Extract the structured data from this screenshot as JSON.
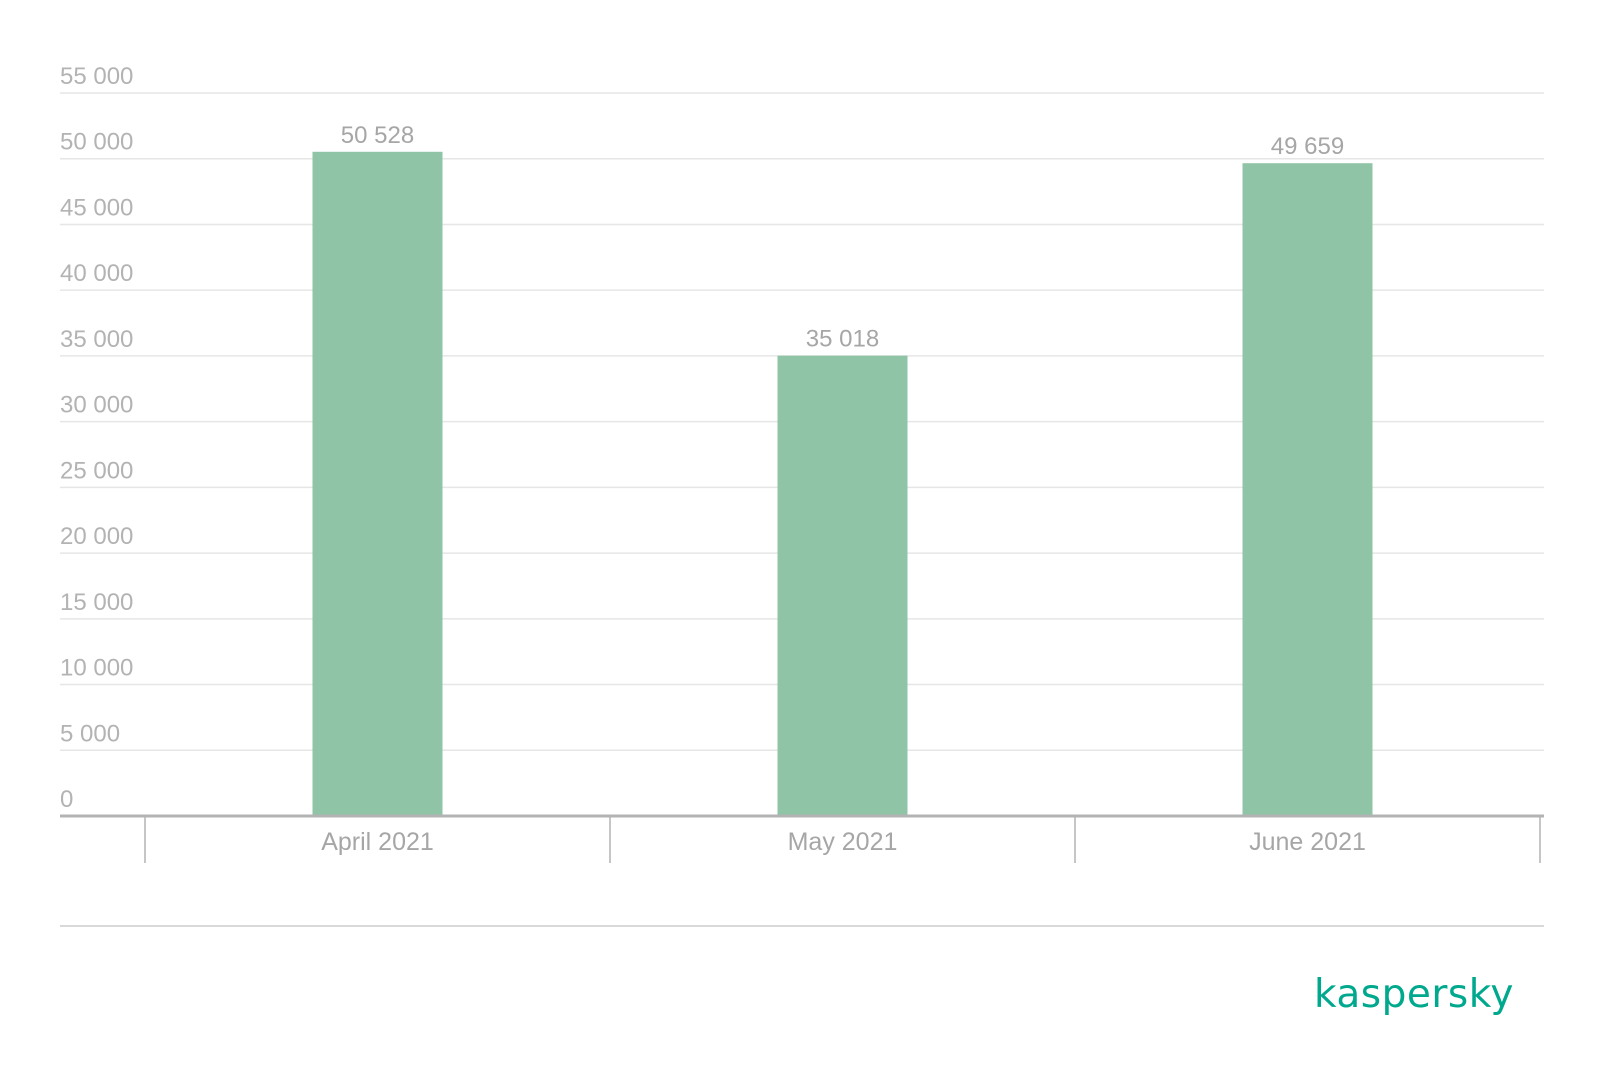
{
  "chart_data": {
    "type": "bar",
    "categories": [
      "April 2021",
      "May 2021",
      "June 2021"
    ],
    "values": [
      50528,
      35018,
      49659
    ],
    "value_labels": [
      "50 528",
      "35 018",
      "49 659"
    ],
    "ylim": [
      0,
      55000
    ],
    "yticks": [
      0,
      5000,
      10000,
      15000,
      20000,
      25000,
      30000,
      35000,
      40000,
      45000,
      50000,
      55000
    ],
    "ytick_labels": [
      "0",
      "5 000",
      "10 000",
      "15 000",
      "20 000",
      "25 000",
      "30 000",
      "35 000",
      "40 000",
      "45 000",
      "50 000",
      "55 000"
    ],
    "grid": true,
    "legend": "none",
    "bar_color": "#8fc4a6"
  },
  "brand": {
    "logo_text": "kaspersky",
    "color": "#00a88e"
  }
}
